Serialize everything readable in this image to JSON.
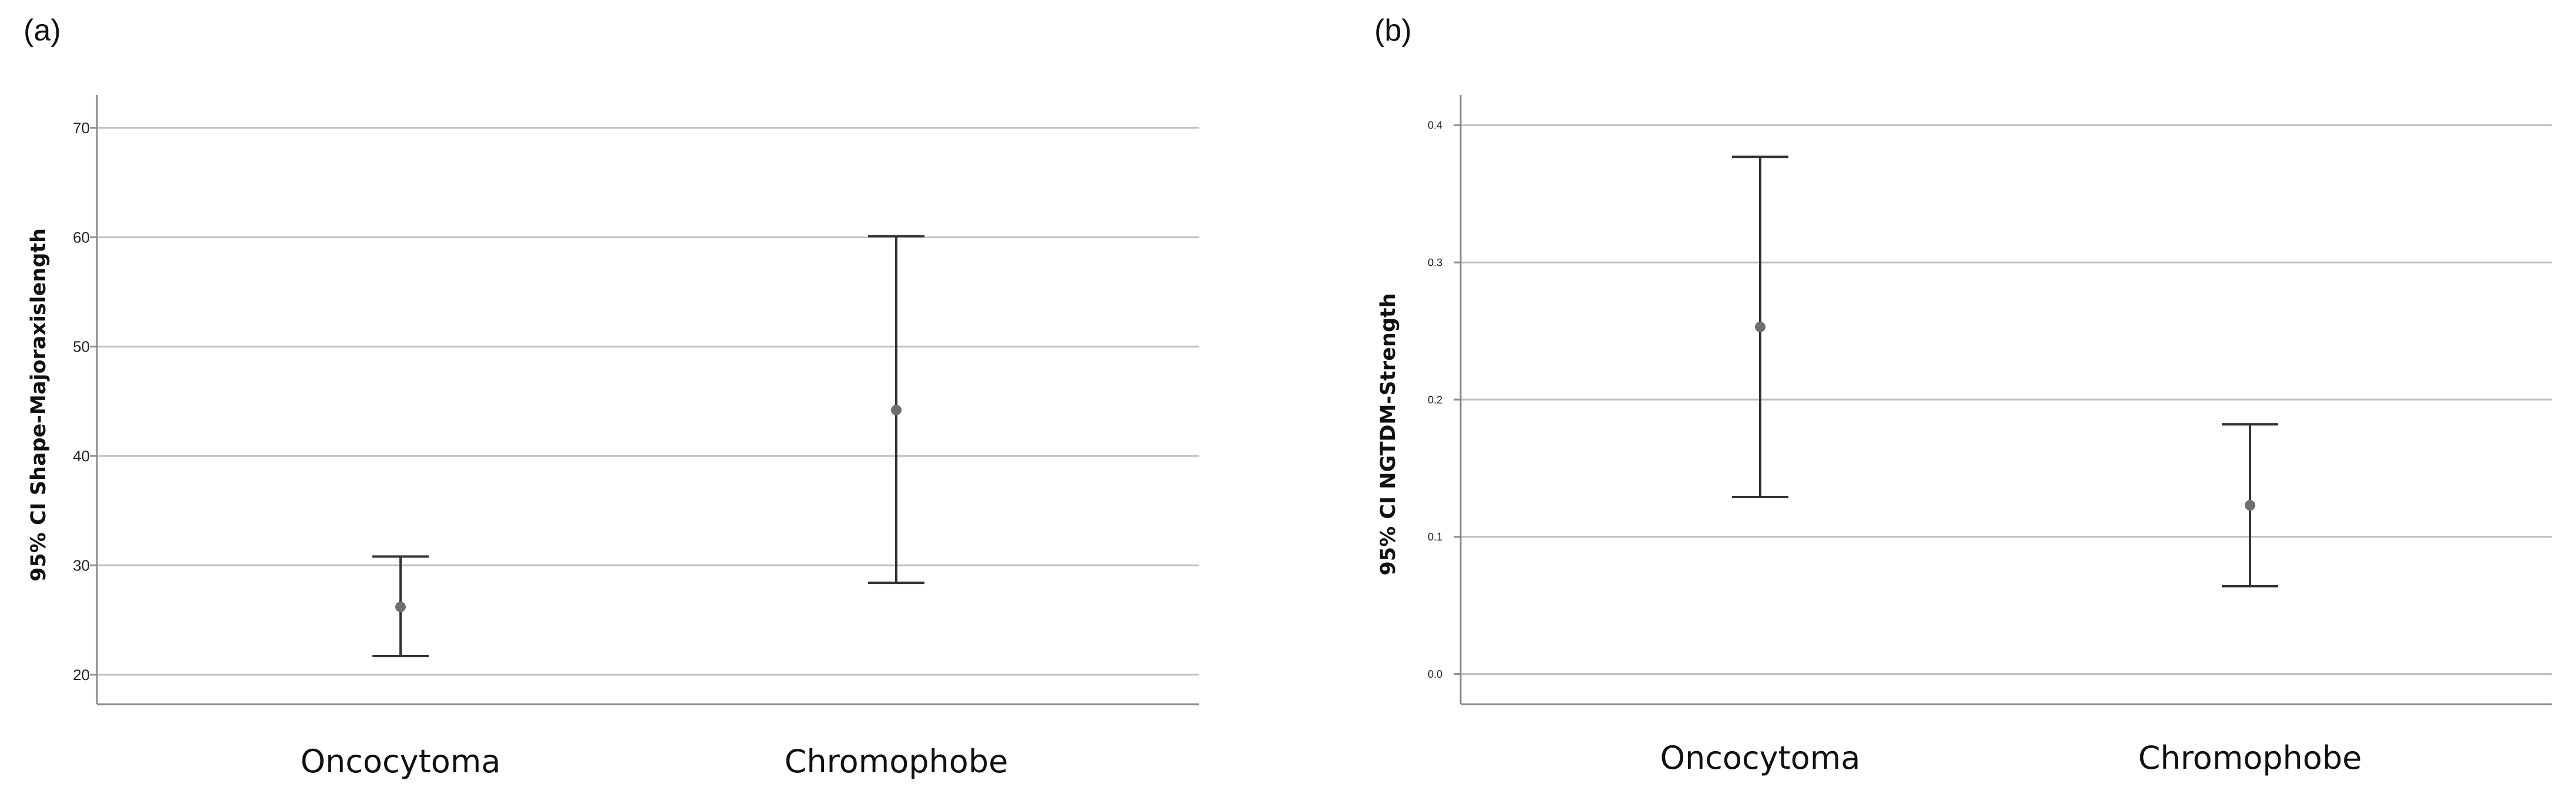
{
  "panels": {
    "a_label": "(a)",
    "b_label": "(b)"
  },
  "chart_data": [
    {
      "type": "errorbar",
      "panel": "(a)",
      "title": "",
      "xlabel": "",
      "ylabel": "95% CI Shape-Majoraxislength",
      "categories": [
        "Oncocytoma",
        "Chromophobe"
      ],
      "mean": [
        26.2,
        44.2
      ],
      "ci_lower": [
        21.7,
        28.4
      ],
      "ci_upper": [
        30.8,
        60.1
      ],
      "ylim": [
        17.3,
        73.0
      ],
      "yticks": [
        20,
        30,
        40,
        50,
        60,
        70
      ],
      "ytick_labels": [
        "20",
        "30",
        "40",
        "50",
        "60",
        "70"
      ],
      "grid": true,
      "colors": {
        "marker": "#6e6e6e",
        "errorbar": "#333333",
        "grid": "#bdbdbd",
        "axis": "#8c8c8c"
      }
    },
    {
      "type": "errorbar",
      "panel": "(b)",
      "title": "",
      "xlabel": "",
      "ylabel": "95% CI NGTDM-Strength",
      "categories": [
        "Oncocytoma",
        "Chromophobe"
      ],
      "mean": [
        0.253,
        0.123
      ],
      "ci_lower": [
        0.129,
        0.064
      ],
      "ci_upper": [
        0.377,
        0.182
      ],
      "ylim": [
        -0.022,
        0.422
      ],
      "yticks": [
        0.0,
        0.1,
        0.2,
        0.3,
        0.4
      ],
      "ytick_labels": [
        "0.0",
        "0.1",
        "0.2",
        "0.3",
        "0.4"
      ],
      "grid": true,
      "colors": {
        "marker": "#6e6e6e",
        "errorbar": "#333333",
        "grid": "#bdbdbd",
        "axis": "#8c8c8c"
      }
    }
  ]
}
